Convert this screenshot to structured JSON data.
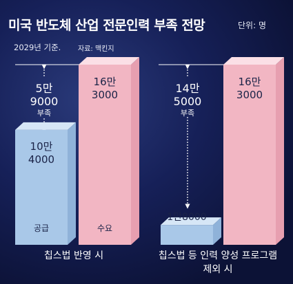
{
  "header": {
    "title": "미국 반도체 산업 전문인력 부족 전망",
    "unit": "단위: 명",
    "subtitle": "2029년 기준.",
    "source": "자료: 맥킨지"
  },
  "colors": {
    "background": "#162058",
    "supply_front": "#a9c8e8",
    "supply_side": "#8fb2d9",
    "supply_top": "#d6e6f6",
    "demand_front": "#f2b6c3",
    "demand_side": "#e79fb0",
    "demand_top": "#fbdfe6",
    "text_dark": "#1a2347",
    "text_light": "#ffffff"
  },
  "chart_data": {
    "type": "bar",
    "groups": [
      {
        "name": "칩스법 반영 시",
        "supply": {
          "value": 104000,
          "label_line1": "10만",
          "label_line2": "4000",
          "category": "공급"
        },
        "demand": {
          "value": 163000,
          "label_line1": "16만",
          "label_line2": "3000",
          "category": "수요"
        },
        "shortage": {
          "value": 59000,
          "label_line1": "5만",
          "label_line2": "9000",
          "label_line3": "부족"
        }
      },
      {
        "name": "칩스법 등 인력 양성 프로그램 제외 시",
        "name_line1": "칩스법 등 인력 양성 프로그램",
        "name_line2": "제외 시",
        "supply": {
          "value": 18000,
          "label_line1": "1만8000"
        },
        "demand": {
          "value": 163000,
          "label_line1": "16만",
          "label_line2": "3000"
        },
        "shortage": {
          "value": 145000,
          "label_line1": "14만",
          "label_line2": "5000",
          "label_line3": "부족"
        }
      }
    ]
  }
}
